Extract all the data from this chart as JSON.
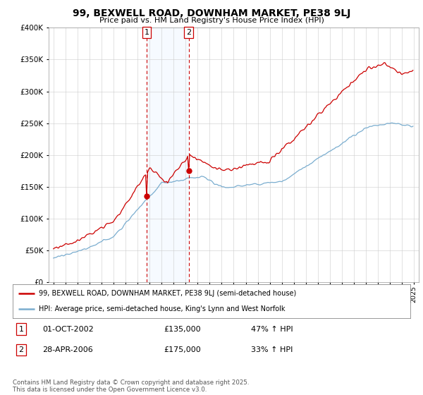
{
  "title": "99, BEXWELL ROAD, DOWNHAM MARKET, PE38 9LJ",
  "subtitle": "Price paid vs. HM Land Registry's House Price Index (HPI)",
  "legend_line1": "99, BEXWELL ROAD, DOWNHAM MARKET, PE38 9LJ (semi-detached house)",
  "legend_line2": "HPI: Average price, semi-detached house, King's Lynn and West Norfolk",
  "transaction1_date": "01-OCT-2002",
  "transaction1_price": "£135,000",
  "transaction1_hpi": "47% ↑ HPI",
  "transaction2_date": "28-APR-2006",
  "transaction2_price": "£175,000",
  "transaction2_hpi": "33% ↑ HPI",
  "footer": "Contains HM Land Registry data © Crown copyright and database right 2025.\nThis data is licensed under the Open Government Licence v3.0.",
  "price_color": "#cc0000",
  "hpi_color": "#7aadcf",
  "vline_color": "#cc0000",
  "vline_fill_color": "#ddeeff",
  "ylim": [
    0,
    400000
  ],
  "yticks": [
    0,
    50000,
    100000,
    150000,
    200000,
    250000,
    300000,
    350000,
    400000
  ],
  "background_color": "#ffffff",
  "t1_year": 2002.75,
  "t2_year": 2006.25,
  "t1_price": 135000,
  "t2_price": 175000
}
